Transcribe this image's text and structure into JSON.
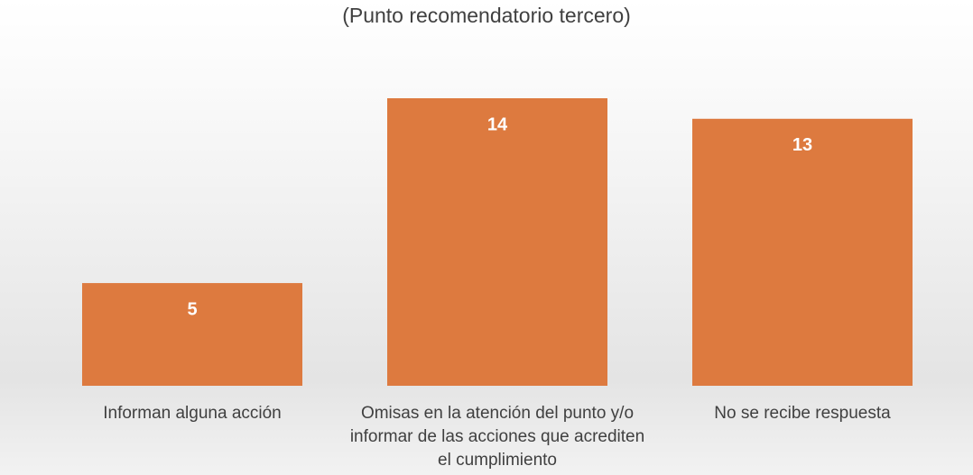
{
  "chart_data": {
    "type": "bar",
    "title": "(Punto recomendatorio tercero)",
    "categories": [
      "Informan alguna acción",
      "Omisas en la atención del punto y/o informar de las acciones que acrediten el cumplimiento",
      "No se recibe respuesta"
    ],
    "values": [
      5,
      14,
      13
    ],
    "color": "#dd7a3f"
  }
}
